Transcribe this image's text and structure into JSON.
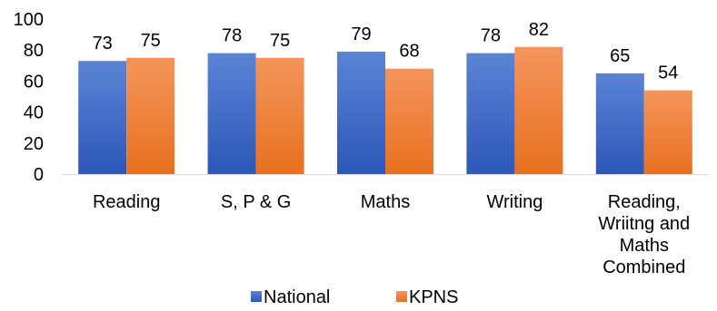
{
  "chart_data": {
    "type": "bar",
    "title": "",
    "xlabel": "",
    "ylabel": "",
    "ylim": [
      0,
      100
    ],
    "yticks": [
      0,
      20,
      40,
      60,
      80,
      100
    ],
    "grid": false,
    "legend_position": "bottom",
    "categories": [
      [
        "Reading"
      ],
      [
        "S, P & G"
      ],
      [
        "Maths"
      ],
      [
        "Writing"
      ],
      [
        "Reading,",
        "Wriitng and",
        "Maths",
        "Combined"
      ]
    ],
    "series": [
      {
        "name": "National",
        "values": [
          73,
          78,
          79,
          78,
          65
        ],
        "color_top": "#5b84d6",
        "color_bottom": "#2d57b8"
      },
      {
        "name": "KPNS",
        "values": [
          75,
          75,
          68,
          82,
          54
        ],
        "color_top": "#f4955c",
        "color_bottom": "#e8701f"
      }
    ]
  }
}
